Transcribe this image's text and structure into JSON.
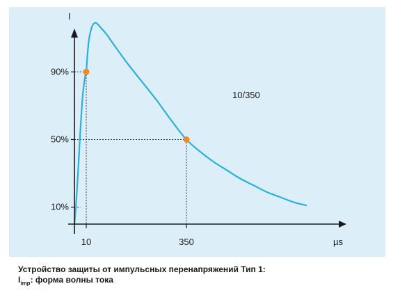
{
  "chart_data": {
    "type": "line",
    "annotation": "10/350",
    "y_axis_label": "I",
    "x_axis_unit": "µs",
    "y_ticks": [
      {
        "label": "90%",
        "value": 0.9
      },
      {
        "label": "50%",
        "value": 0.5
      },
      {
        "label": "10%",
        "value": 0.1
      }
    ],
    "x_ticks": [
      {
        "label": "10",
        "value": 10
      },
      {
        "label": "350",
        "value": 350
      }
    ],
    "marked_points": [
      {
        "x": 10,
        "y": 0.9
      },
      {
        "x": 350,
        "y": 0.5
      }
    ],
    "series": [
      {
        "x": [
          0,
          1,
          3,
          5,
          7,
          9,
          10,
          12,
          15,
          20,
          30,
          40,
          50,
          60,
          80,
          100,
          150,
          200,
          250,
          300,
          350,
          400,
          450,
          500,
          550,
          600,
          650,
          700,
          750,
          800
        ],
        "y": [
          0,
          0.08,
          0.3,
          0.55,
          0.76,
          0.87,
          0.9,
          0.95,
          1.02,
          1.1,
          1.17,
          1.19,
          1.18,
          1.16,
          1.12,
          1.07,
          0.95,
          0.84,
          0.73,
          0.61,
          0.5,
          0.43,
          0.37,
          0.32,
          0.27,
          0.23,
          0.19,
          0.16,
          0.13,
          0.11
        ]
      }
    ],
    "background": "#dceef8",
    "curve_color": "#2bb0de",
    "marker_color": "#f08a26",
    "axis_color": "#1a1a1a"
  },
  "caption": {
    "line1": "Устройство защиты от импульсных перенапряжений Тип 1:",
    "line2_symbol": "I",
    "line2_subscript": "imp",
    "line2_text": ": форма волны тока"
  }
}
